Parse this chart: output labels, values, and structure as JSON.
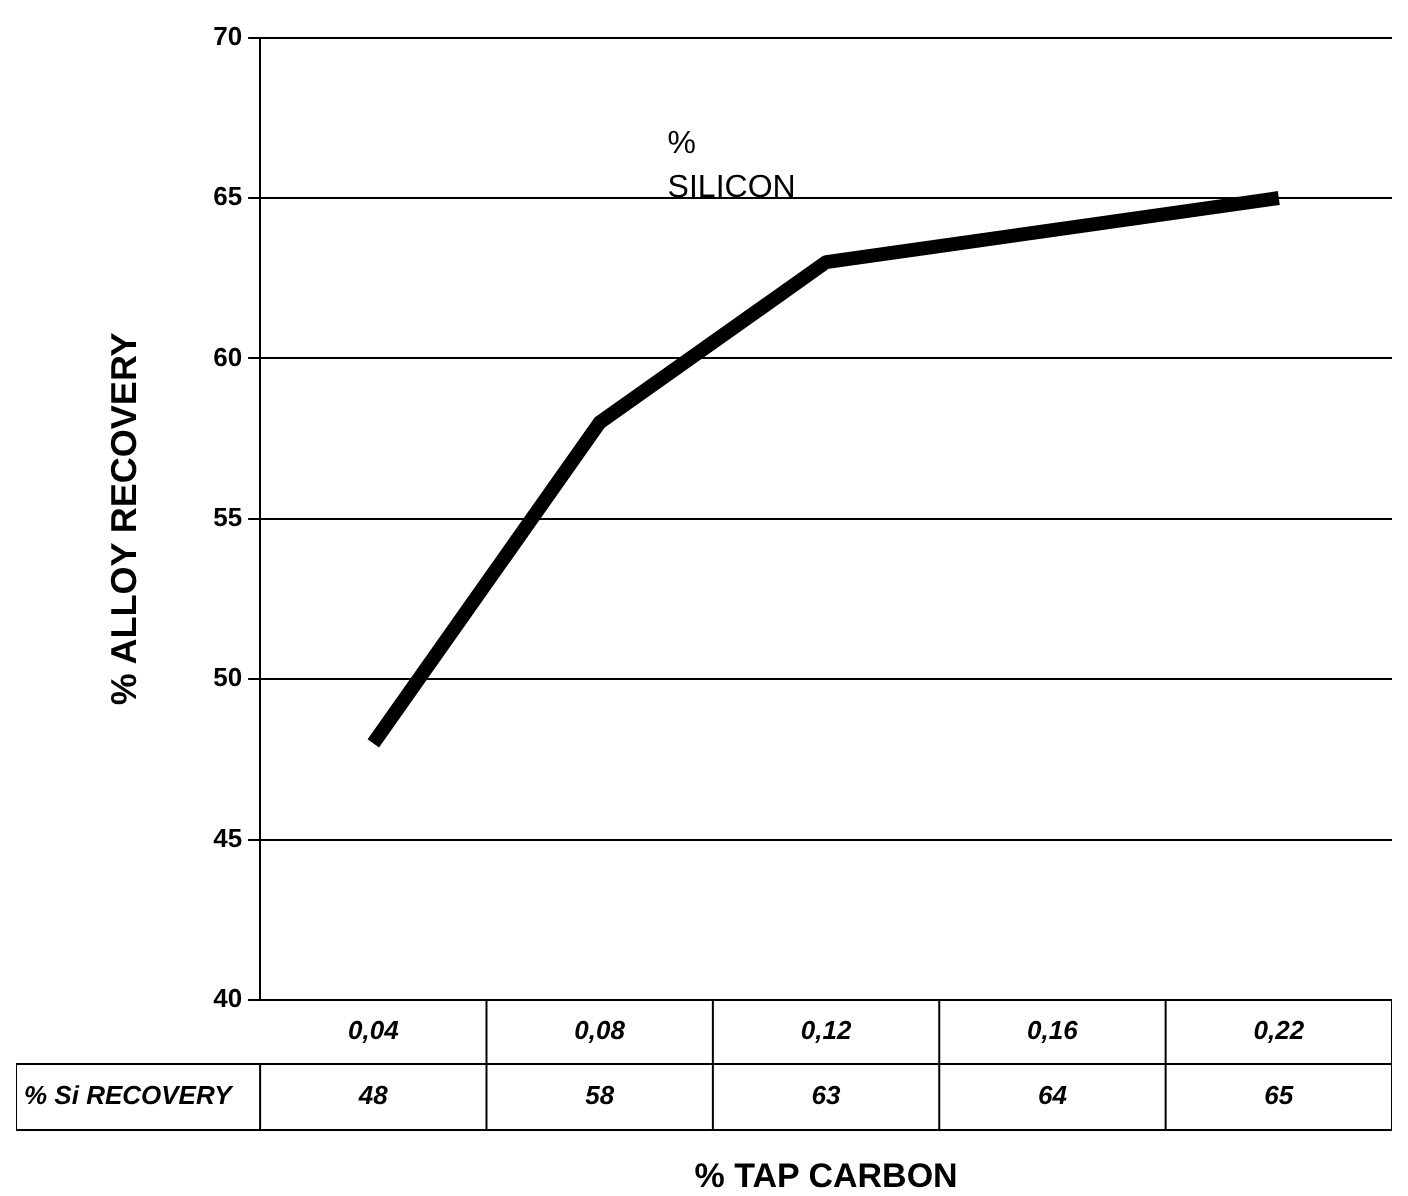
{
  "chart_data": {
    "type": "line",
    "xlabel": "% TAP CARBON",
    "ylabel": "% ALLOY RECOVERY",
    "categories": [
      "0,04",
      "0,08",
      "0,12",
      "0,16",
      "0,22"
    ],
    "series": [
      {
        "name": "% Si RECOVERY",
        "color": "#000000",
        "values": [
          48,
          58,
          63,
          64,
          65
        ]
      }
    ],
    "ylim": [
      40,
      70
    ],
    "yticks": [
      40,
      45,
      50,
      55,
      60,
      65,
      70
    ],
    "grid": "y",
    "legend": false,
    "marker": "none",
    "line_style": "solid",
    "data_labels": true,
    "annotations": [
      "% SILICON"
    ]
  }
}
